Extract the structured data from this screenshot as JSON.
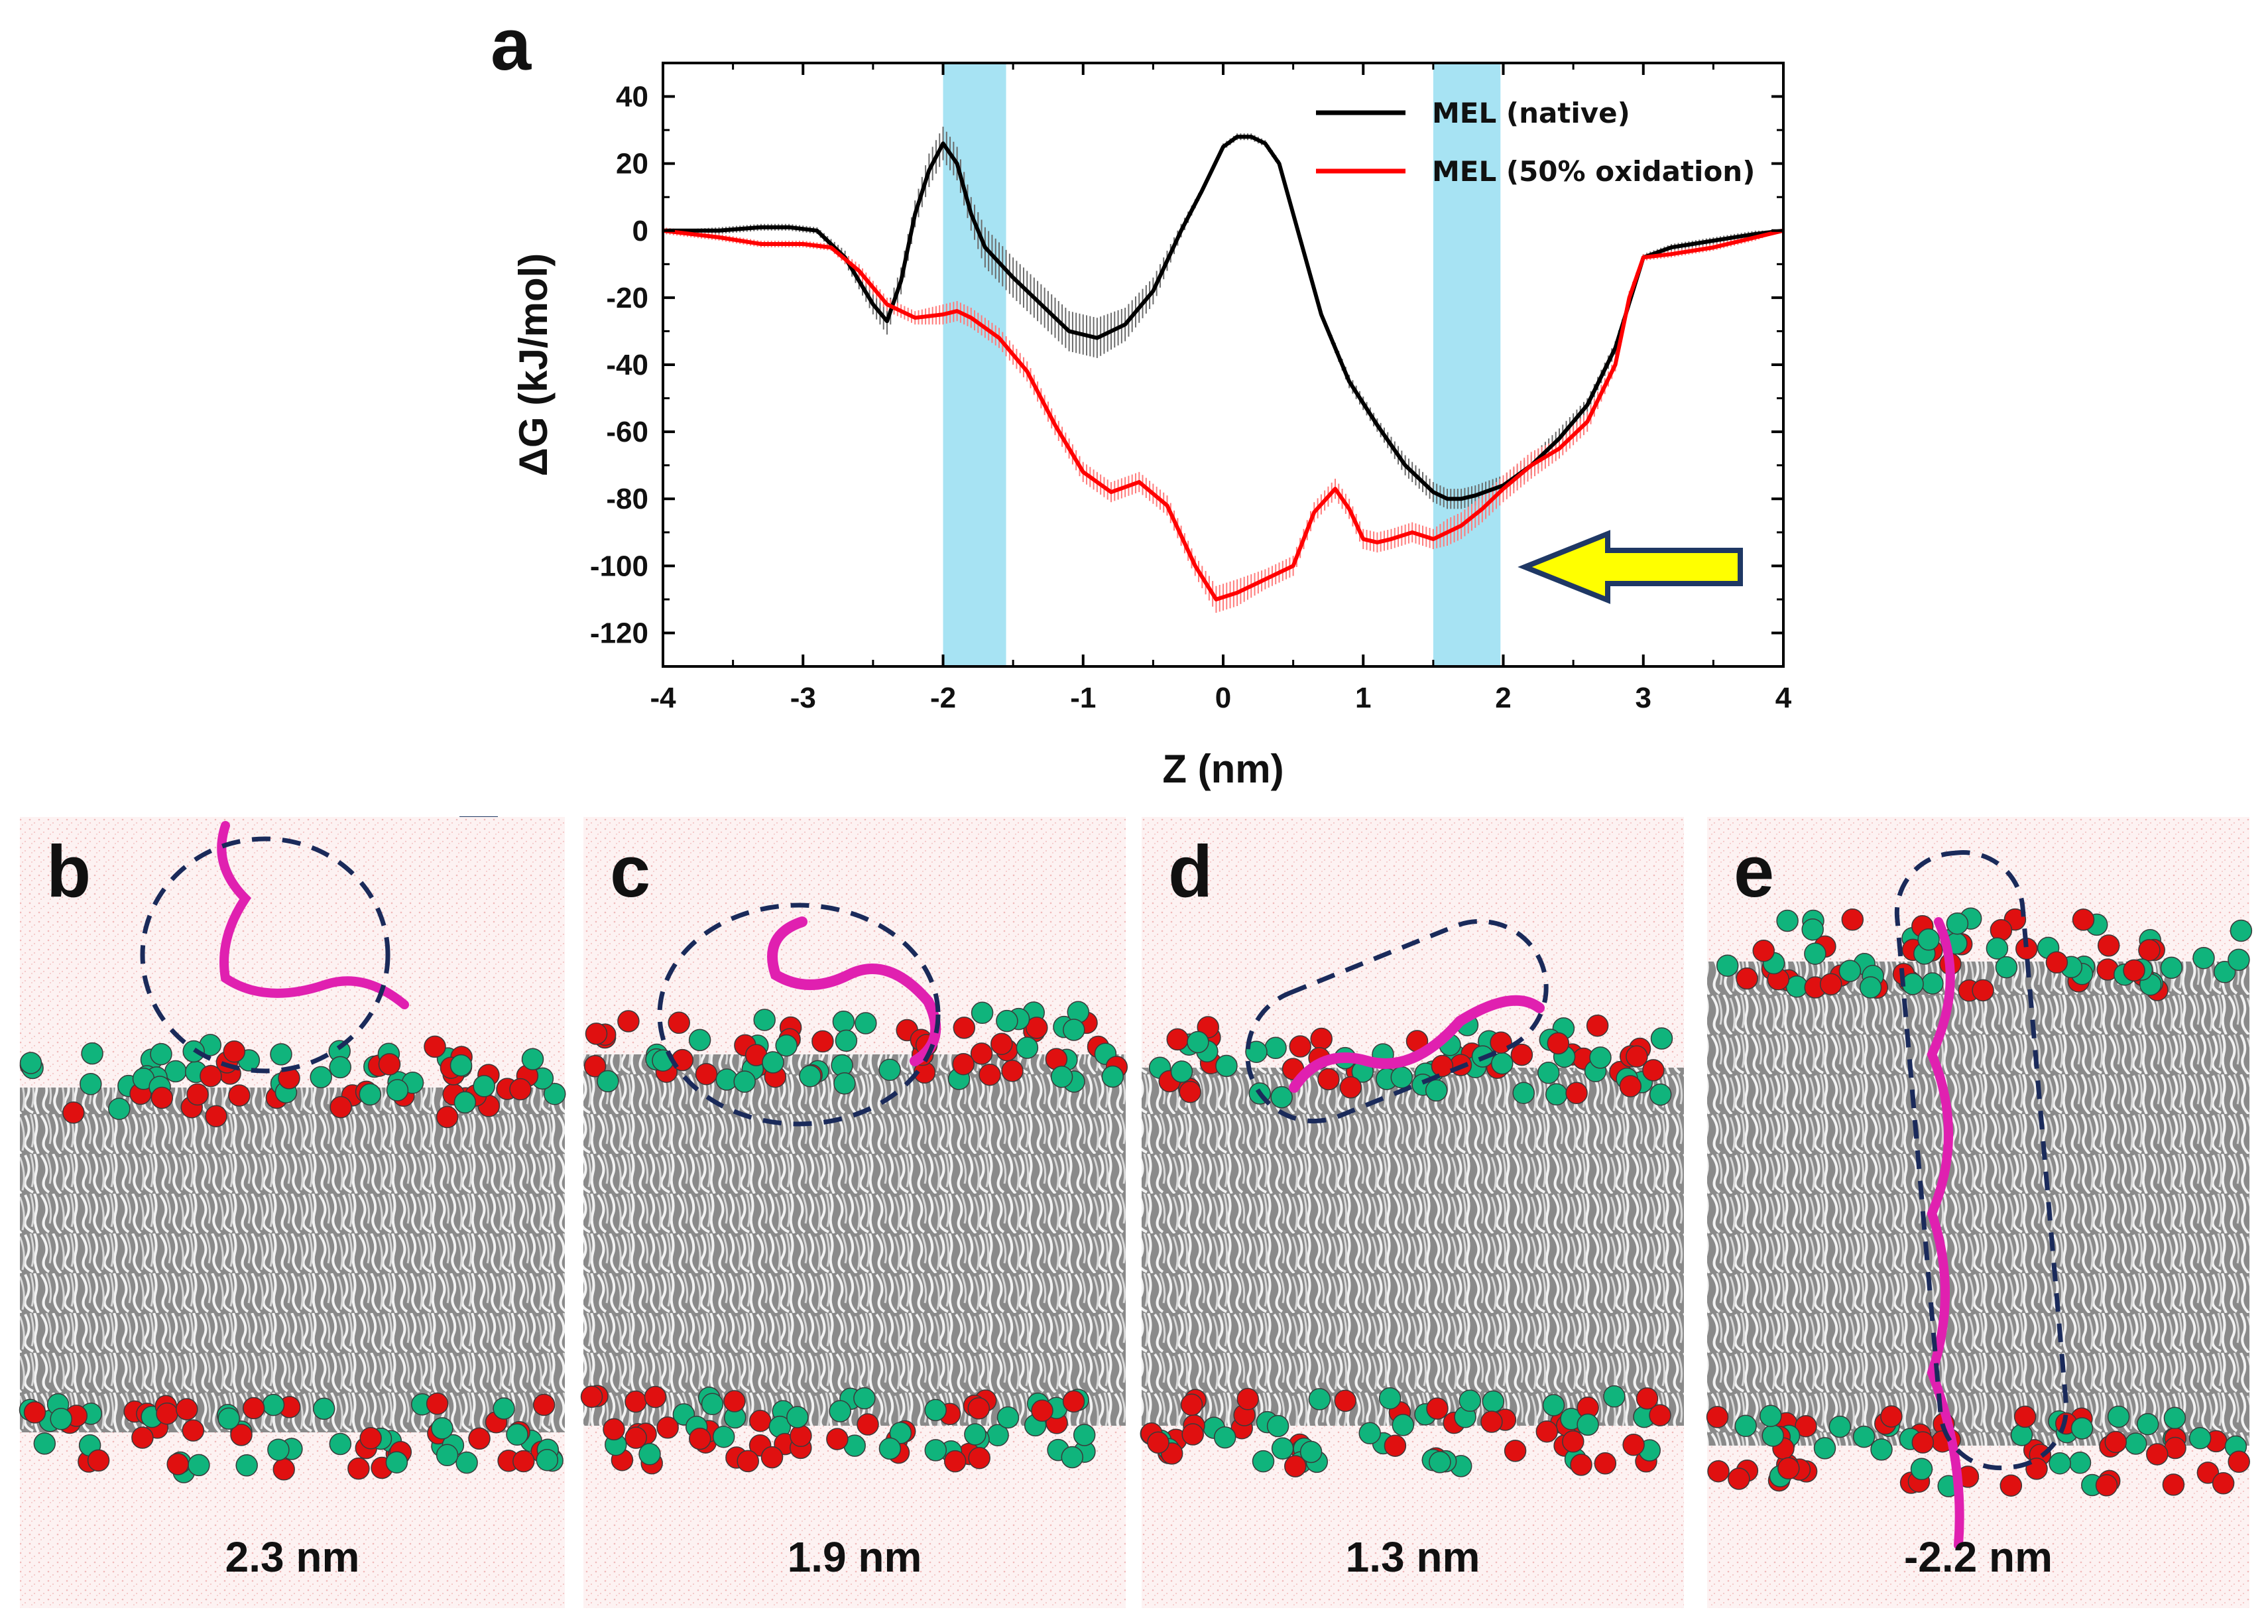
{
  "colors": {
    "native": "#000000",
    "oxidized": "#ff0000",
    "highlight": "#a7e3f3",
    "arrow_fill": "#ffff00",
    "arrow_stroke": "#1f3864",
    "peptide": "#e020b0",
    "headgroup_red": "#e01010",
    "headgroup_green": "#10b47c",
    "lipid_tail": "#c9c9c9",
    "water": "#f6d3d3",
    "circle": "#1a2a5a"
  },
  "chart_data": {
    "panel_label": "a",
    "type": "line",
    "xlabel": "Z (nm)",
    "ylabel": "ΔG (kJ/mol)",
    "xlim": [
      -4,
      4
    ],
    "ylim": [
      -130,
      50
    ],
    "xticks": [
      -4,
      -3,
      -2,
      -1,
      0,
      1,
      2,
      3,
      4
    ],
    "yticks": [
      40,
      20,
      0,
      -20,
      -40,
      -60,
      -80,
      -100,
      -120
    ],
    "legend_position": "top-right",
    "highlight_bands": [
      [
        -2.0,
        -1.55
      ],
      [
        1.5,
        1.98
      ]
    ],
    "series": [
      {
        "name": "MEL (native)",
        "color": "#000000",
        "x": [
          -4.0,
          -3.6,
          -3.3,
          -3.1,
          -2.9,
          -2.7,
          -2.5,
          -2.4,
          -2.3,
          -2.2,
          -2.1,
          -2.0,
          -1.9,
          -1.8,
          -1.7,
          -1.5,
          -1.3,
          -1.1,
          -0.9,
          -0.7,
          -0.5,
          -0.3,
          -0.15,
          0.0,
          0.1,
          0.2,
          0.3,
          0.4,
          0.5,
          0.7,
          0.9,
          1.1,
          1.3,
          1.5,
          1.6,
          1.7,
          1.8,
          2.0,
          2.2,
          2.4,
          2.6,
          2.8,
          3.0,
          3.2,
          3.5,
          3.8,
          4.0
        ],
        "y": [
          0,
          0,
          1,
          1,
          0,
          -8,
          -22,
          -27,
          -15,
          5,
          18,
          26,
          20,
          5,
          -5,
          -14,
          -22,
          -30,
          -32,
          -28,
          -18,
          0,
          12,
          25,
          28,
          28,
          26,
          20,
          5,
          -25,
          -45,
          -58,
          -70,
          -78,
          -80,
          -80,
          -79,
          -76,
          -70,
          -62,
          -52,
          -35,
          -8,
          -5,
          -3,
          -1,
          0
        ],
        "error": [
          0,
          1,
          1,
          1,
          1,
          2,
          3,
          4,
          4,
          4,
          5,
          5,
          5,
          5,
          6,
          6,
          6,
          6,
          6,
          5,
          4,
          2,
          1,
          1,
          1,
          1,
          1,
          1,
          1,
          1,
          2,
          2,
          3,
          3,
          3,
          3,
          3,
          3,
          3,
          3,
          2,
          2,
          1,
          1,
          1,
          1,
          0
        ]
      },
      {
        "name": "MEL (50% oxidation)",
        "color": "#ff0000",
        "x": [
          -4.0,
          -3.6,
          -3.3,
          -3.0,
          -2.8,
          -2.6,
          -2.4,
          -2.2,
          -2.0,
          -1.9,
          -1.8,
          -1.6,
          -1.4,
          -1.2,
          -1.0,
          -0.8,
          -0.6,
          -0.4,
          -0.2,
          -0.05,
          0.1,
          0.3,
          0.5,
          0.65,
          0.8,
          0.9,
          1.0,
          1.1,
          1.2,
          1.35,
          1.5,
          1.6,
          1.7,
          1.85,
          2.0,
          2.2,
          2.4,
          2.6,
          2.8,
          2.9,
          3.0,
          3.2,
          3.5,
          3.8,
          4.0
        ],
        "y": [
          0,
          -2,
          -4,
          -4,
          -5,
          -12,
          -22,
          -26,
          -25,
          -24,
          -26,
          -32,
          -42,
          -58,
          -72,
          -78,
          -75,
          -82,
          -100,
          -110,
          -108,
          -104,
          -100,
          -84,
          -77,
          -83,
          -92,
          -93,
          -92,
          -90,
          -92,
          -90,
          -88,
          -83,
          -77,
          -70,
          -65,
          -57,
          -40,
          -20,
          -8,
          -7,
          -5,
          -2,
          0
        ],
        "error": [
          1,
          1,
          1,
          1,
          1,
          2,
          2,
          2,
          3,
          3,
          3,
          3,
          3,
          3,
          3,
          3,
          3,
          3,
          3,
          4,
          4,
          3,
          3,
          3,
          3,
          3,
          3,
          3,
          3,
          3,
          3,
          4,
          4,
          4,
          4,
          4,
          3,
          3,
          2,
          2,
          1,
          1,
          1,
          1,
          0
        ]
      }
    ]
  },
  "snapshots": [
    {
      "label": "b",
      "distance": "2.3 nm"
    },
    {
      "label": "c",
      "distance": "1.9 nm"
    },
    {
      "label": "d",
      "distance": "1.3 nm"
    },
    {
      "label": "e",
      "distance": "-2.2 nm"
    }
  ]
}
